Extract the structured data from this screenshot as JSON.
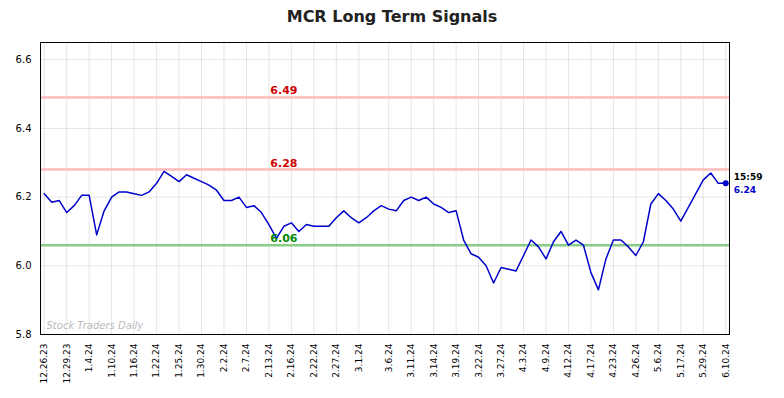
{
  "chart_data": {
    "type": "line",
    "title": "MCR Long Term Signals",
    "categories": [
      "12.26.23",
      null,
      null,
      "12.29.23",
      null,
      null,
      "1.4.24",
      null,
      null,
      "1.10.24",
      null,
      null,
      "1.16.24",
      null,
      null,
      "1.22.24",
      null,
      null,
      "1.25.24",
      null,
      null,
      "1.30.24",
      null,
      null,
      "2.2.24",
      null,
      null,
      "2.7.24",
      null,
      null,
      "2.13.24",
      null,
      null,
      "2.16.24",
      null,
      null,
      "2.22.24",
      null,
      null,
      "2.27.24",
      null,
      null,
      "3.1.24",
      null,
      null,
      null,
      "3.6.24",
      null,
      null,
      "3.11.24",
      null,
      null,
      "3.14.24",
      null,
      null,
      "3.19.24",
      null,
      null,
      "3.22.24",
      null,
      null,
      "3.27.24",
      null,
      null,
      "4.3.24",
      null,
      null,
      "4.9.24",
      null,
      null,
      "4.12.24",
      null,
      null,
      "4.17.24",
      null,
      null,
      "4.23.24",
      null,
      null,
      "4.26.24",
      null,
      null,
      "5.6.24",
      null,
      null,
      "5.17.24",
      null,
      null,
      "5.29.24",
      null,
      null,
      "6.10.24"
    ],
    "values": [
      6.21,
      6.185,
      6.19,
      6.155,
      6.175,
      6.205,
      6.205,
      6.09,
      6.16,
      6.2,
      6.215,
      6.215,
      6.21,
      6.205,
      6.215,
      6.24,
      6.275,
      6.26,
      6.245,
      6.265,
      6.255,
      6.245,
      6.235,
      6.22,
      6.19,
      6.19,
      6.2,
      6.17,
      6.175,
      6.155,
      6.12,
      6.08,
      6.115,
      6.125,
      6.1,
      6.12,
      6.115,
      6.115,
      6.115,
      6.14,
      6.16,
      6.14,
      6.125,
      6.14,
      6.16,
      6.175,
      6.165,
      6.16,
      6.19,
      6.2,
      6.19,
      6.2,
      6.18,
      6.17,
      6.155,
      6.16,
      6.075,
      6.035,
      6.025,
      6.0,
      5.95,
      5.995,
      5.99,
      5.985,
      6.03,
      6.075,
      6.055,
      6.02,
      6.07,
      6.1,
      6.06,
      6.075,
      6.06,
      5.98,
      5.93,
      6.02,
      6.075,
      6.075,
      6.055,
      6.03,
      6.07,
      6.18,
      6.21,
      6.19,
      6.165,
      6.13,
      6.17,
      6.21,
      6.25,
      6.27,
      6.24,
      6.24
    ],
    "color": "#0000cc",
    "ylim": [
      5.8,
      6.65
    ],
    "yticks": [
      5.8,
      {
        "value": 6.0,
        "label": "6.0"
      },
      6.2,
      6.4,
      6.6
    ],
    "grid": true,
    "reference_lines": [
      {
        "value": 6.49,
        "color": "#ffbbbb",
        "label_color": "#cc0000"
      },
      {
        "value": 6.28,
        "color": "#ffbbbb",
        "label_color": "#cc0000"
      },
      {
        "value": 6.06,
        "color": "#88cc88",
        "label_color": "#008800"
      }
    ],
    "last_point": {
      "value": 6.24,
      "time": "15:59",
      "color": "#0000cc",
      "time_color": "#000000"
    },
    "watermark": {
      "text": "Stock Traders Daily",
      "color": "#bbbbbb"
    }
  }
}
